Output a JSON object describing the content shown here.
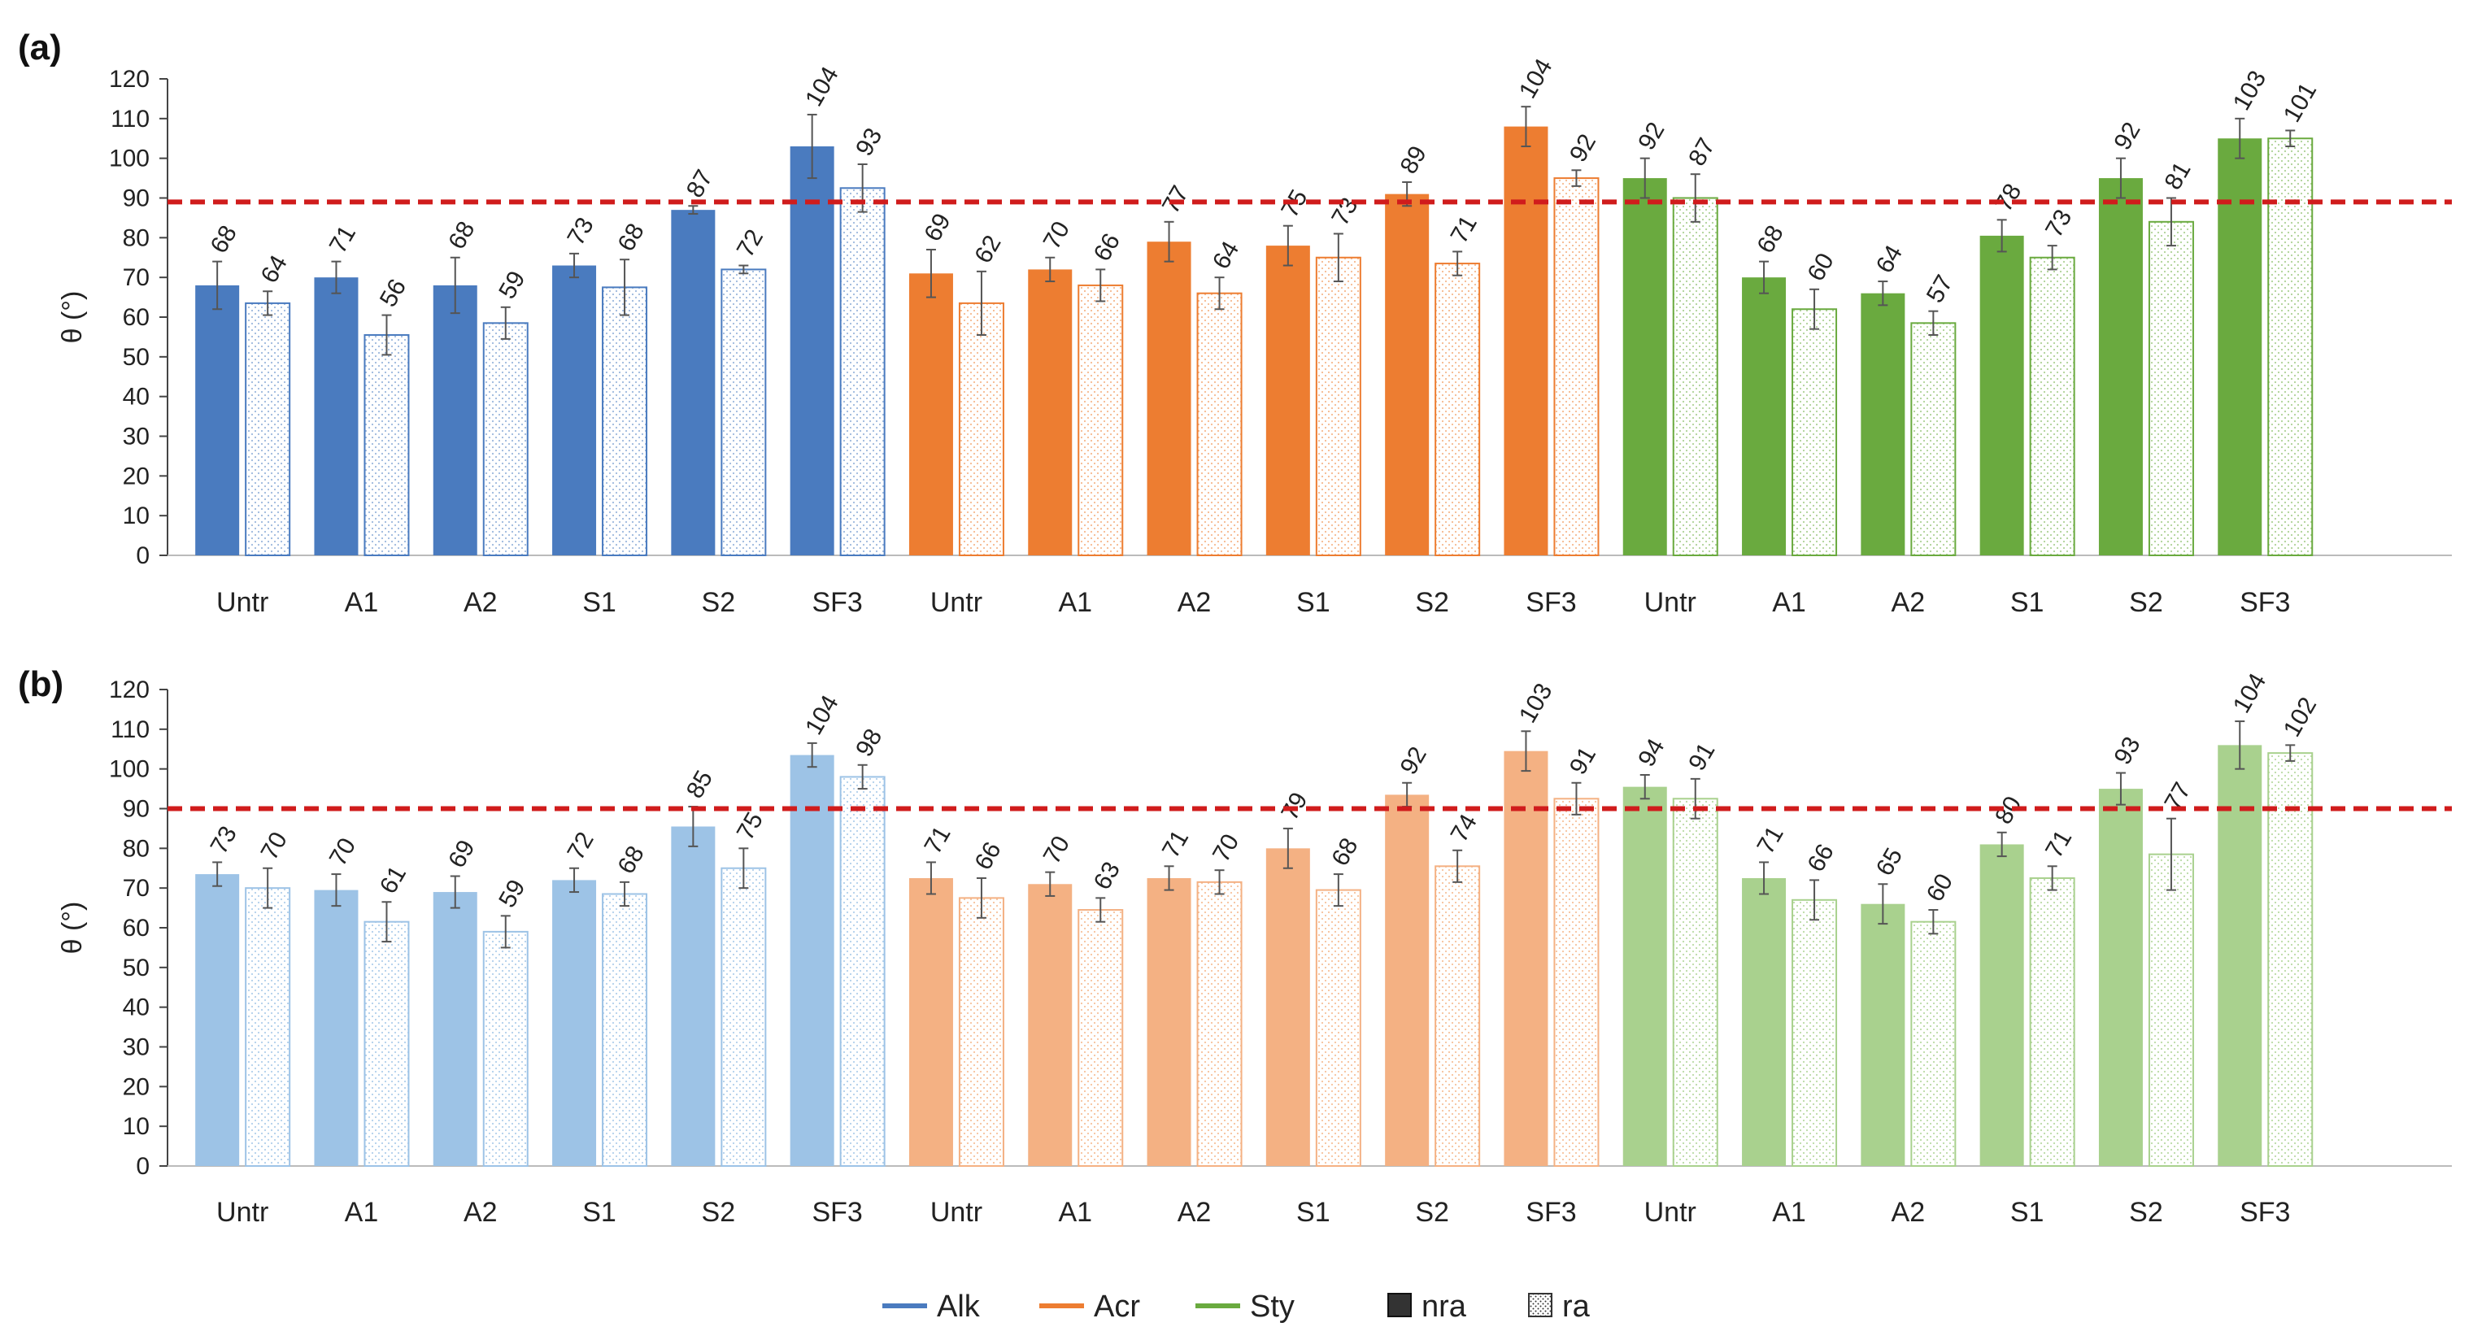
{
  "colors": {
    "Alk": "#4a7bbf",
    "Acr": "#ed7d31",
    "Sty": "#6aaa3f",
    "Alk_light": "#9dc3e6",
    "Acr_light": "#f4b183",
    "Sty_light": "#a9d18e",
    "threshold": "#d01c1c"
  },
  "legend": {
    "groups": [
      {
        "key": "Alk",
        "label": "Alk"
      },
      {
        "key": "Acr",
        "label": "Acr"
      },
      {
        "key": "Sty",
        "label": "Sty"
      }
    ],
    "kinds": [
      {
        "key": "nra",
        "label": "nra"
      },
      {
        "key": "ra",
        "label": "ra"
      }
    ]
  },
  "chart_data": [
    {
      "type": "bar",
      "panel": "(a)",
      "ylabel": "θ (°)",
      "ylim": [
        0,
        120
      ],
      "yticks": [
        0,
        10,
        20,
        30,
        40,
        50,
        60,
        70,
        80,
        90,
        100,
        110,
        120
      ],
      "reference_line": 89,
      "groups": [
        "Alk",
        "Acr",
        "Sty"
      ],
      "categories": [
        "Untr",
        "A1",
        "A2",
        "S1",
        "S2",
        "SF3"
      ],
      "series": [
        {
          "group": "Alk",
          "kind": "nra",
          "values": [
            68,
            71,
            68,
            73,
            87,
            104
          ],
          "errors": [
            6,
            4,
            7,
            3,
            1,
            8
          ]
        },
        {
          "group": "Alk",
          "kind": "ra",
          "values": [
            64,
            56,
            59,
            68,
            72,
            93
          ],
          "errors": [
            3,
            5,
            4,
            7,
            1,
            6
          ]
        },
        {
          "group": "Acr",
          "kind": "nra",
          "values": [
            69,
            70,
            77,
            75,
            89,
            104
          ],
          "errors": [
            6,
            3,
            5,
            5,
            3,
            5
          ]
        },
        {
          "group": "Acr",
          "kind": "ra",
          "values": [
            62,
            66,
            64,
            73,
            71,
            92
          ],
          "errors": [
            8,
            4,
            4,
            6,
            3,
            2
          ]
        },
        {
          "group": "Sty",
          "kind": "nra",
          "values": [
            92,
            68,
            64,
            78,
            92,
            103
          ],
          "errors": [
            5,
            4,
            3,
            4,
            5,
            5
          ]
        },
        {
          "group": "Sty",
          "kind": "ra",
          "values": [
            87,
            60,
            57,
            73,
            81,
            101
          ],
          "errors": [
            6,
            5,
            3,
            3,
            6,
            2
          ]
        }
      ],
      "bar_heights": {
        "Alk": {
          "nra": [
            68,
            70,
            68,
            73,
            87,
            103
          ],
          "ra": [
            63.5,
            55.5,
            58.5,
            67.5,
            72,
            92.5
          ]
        },
        "Acr": {
          "nra": [
            71,
            72,
            79,
            78,
            91,
            108
          ],
          "ra": [
            63.5,
            68,
            66,
            75,
            73.5,
            95
          ]
        },
        "Sty": {
          "nra": [
            95,
            70,
            66,
            80.5,
            95,
            105
          ],
          "ra": [
            90,
            62,
            58.5,
            75,
            84,
            105
          ]
        }
      }
    },
    {
      "type": "bar",
      "panel": "(b)",
      "ylabel": "θ (°)",
      "ylim": [
        0,
        120
      ],
      "yticks": [
        0,
        10,
        20,
        30,
        40,
        50,
        60,
        70,
        80,
        90,
        100,
        110,
        120
      ],
      "reference_line": 90,
      "groups": [
        "Alk",
        "Acr",
        "Sty"
      ],
      "categories": [
        "Untr",
        "A1",
        "A2",
        "S1",
        "S2",
        "SF3"
      ],
      "series": [
        {
          "group": "Alk",
          "kind": "nra",
          "values": [
            73,
            70,
            69,
            72,
            85,
            104
          ],
          "errors": [
            3,
            4,
            4,
            3,
            5,
            3
          ]
        },
        {
          "group": "Alk",
          "kind": "ra",
          "values": [
            70,
            61,
            59,
            68,
            75,
            98
          ],
          "errors": [
            5,
            5,
            4,
            3,
            5,
            3
          ]
        },
        {
          "group": "Acr",
          "kind": "nra",
          "values": [
            71,
            70,
            71,
            79,
            92,
            103
          ],
          "errors": [
            4,
            3,
            3,
            5,
            3,
            5
          ]
        },
        {
          "group": "Acr",
          "kind": "ra",
          "values": [
            66,
            63,
            70,
            68,
            74,
            91
          ],
          "errors": [
            5,
            3,
            3,
            4,
            4,
            4
          ]
        },
        {
          "group": "Sty",
          "kind": "nra",
          "values": [
            94,
            71,
            65,
            80,
            93,
            104
          ],
          "errors": [
            3,
            4,
            5,
            3,
            4,
            6
          ]
        },
        {
          "group": "Sty",
          "kind": "ra",
          "values": [
            91,
            66,
            60,
            71,
            77,
            102
          ],
          "errors": [
            5,
            5,
            3,
            3,
            9,
            2
          ]
        }
      ],
      "bar_heights": {
        "Alk": {
          "nra": [
            73.5,
            69.5,
            69,
            72,
            85.5,
            103.5
          ],
          "ra": [
            70,
            61.5,
            59,
            68.5,
            75,
            98
          ]
        },
        "Acr": {
          "nra": [
            72.5,
            71,
            72.5,
            80,
            93.5,
            104.5
          ],
          "ra": [
            67.5,
            64.5,
            71.5,
            69.5,
            75.5,
            92.5
          ]
        },
        "Sty": {
          "nra": [
            95.5,
            72.5,
            66,
            81,
            95,
            106
          ],
          "ra": [
            92.5,
            67,
            61.5,
            72.5,
            78.5,
            104
          ]
        }
      }
    }
  ]
}
